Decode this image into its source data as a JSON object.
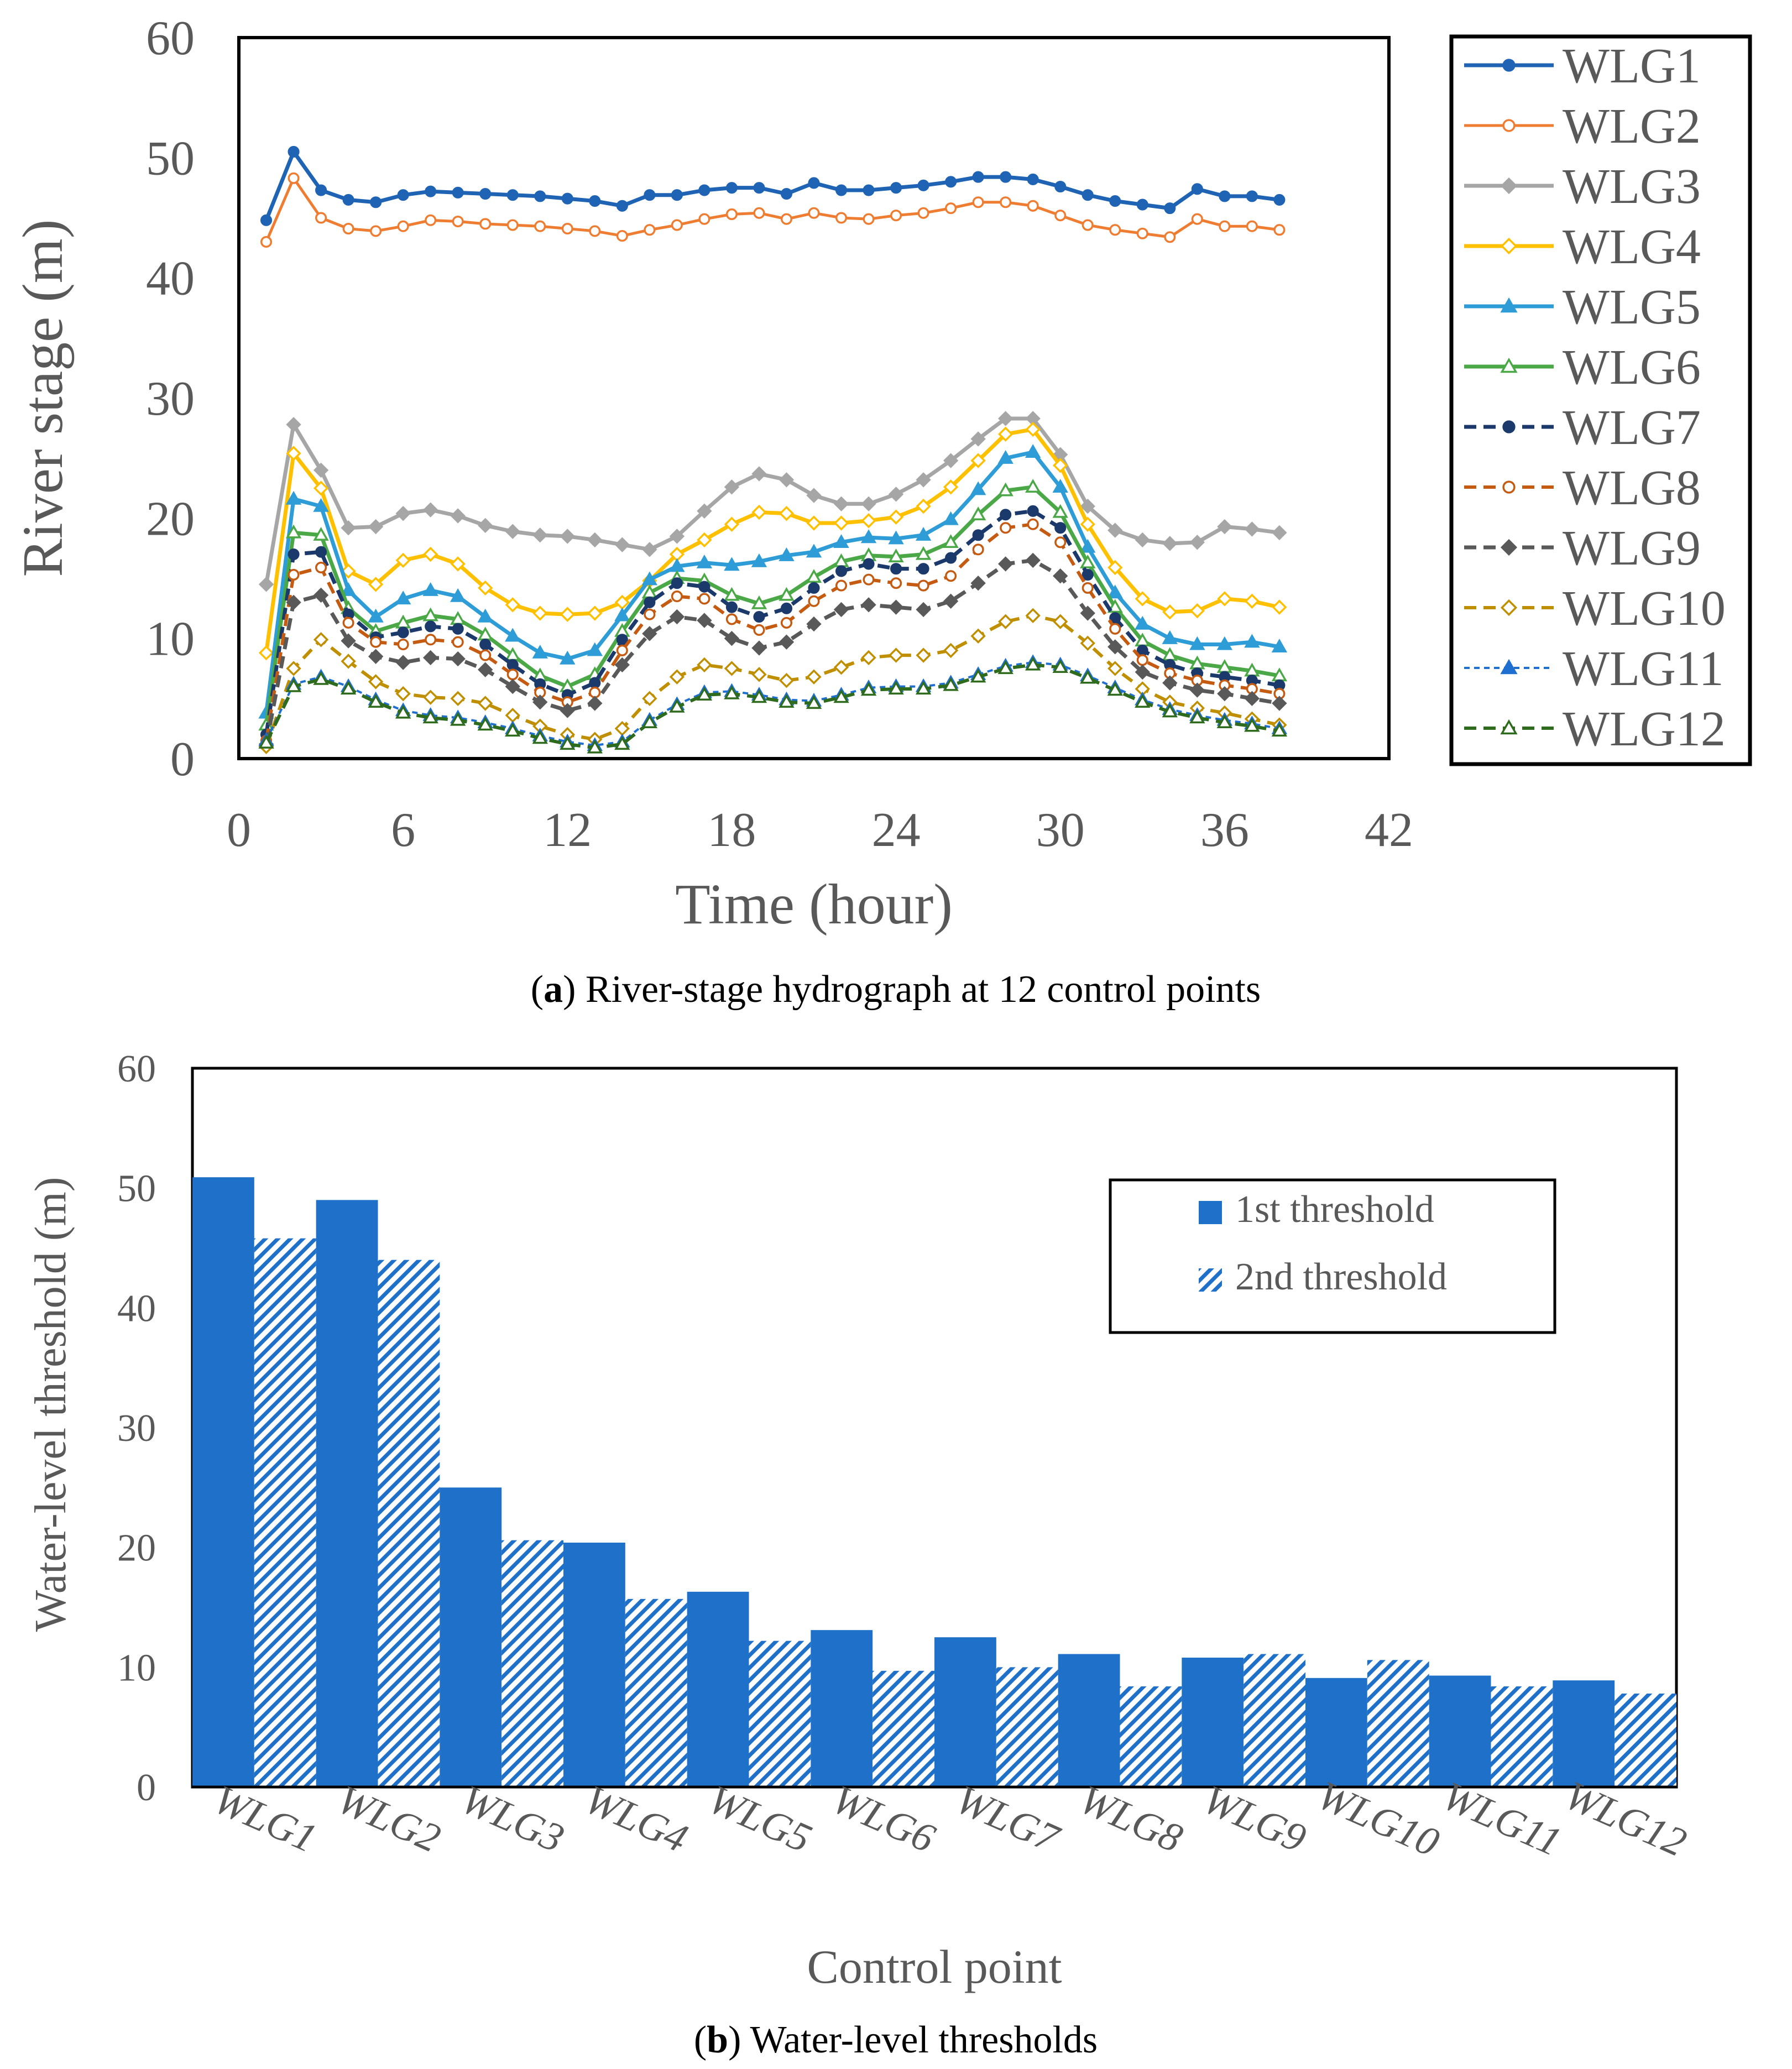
{
  "chart_data": [
    {
      "type": "line",
      "caption_label": "a",
      "caption_text": ") River-stage hydrograph at 12 control points",
      "xlabel": "Time (hour)",
      "ylabel": "River stage (m)",
      "xlim": [
        0,
        42
      ],
      "ylim": [
        0,
        60
      ],
      "xticks": [
        0,
        6,
        12,
        18,
        24,
        30,
        36,
        42
      ],
      "yticks": [
        0,
        10,
        20,
        30,
        40,
        50,
        60
      ],
      "grid": false,
      "legend": "right",
      "x": [
        1,
        2,
        3,
        4,
        5,
        6,
        7,
        8,
        9,
        10,
        11,
        12,
        13,
        14,
        15,
        16,
        17,
        18,
        19,
        20,
        21,
        22,
        23,
        24,
        25,
        26,
        27,
        28,
        29,
        30,
        31,
        32,
        33,
        34,
        35,
        36,
        37,
        38
      ],
      "series": [
        {
          "name": "WLG1",
          "color": "#1f63b4",
          "dash": "",
          "marker": "circle",
          "fill": "#1f63b4",
          "width": 7,
          "values": [
            44.8,
            50.5,
            47.3,
            46.5,
            46.3,
            46.9,
            47.2,
            47.1,
            47.0,
            46.9,
            46.8,
            46.6,
            46.4,
            46.0,
            46.9,
            46.9,
            47.3,
            47.5,
            47.5,
            47.0,
            47.9,
            47.3,
            47.3,
            47.5,
            47.7,
            48.0,
            48.4,
            48.4,
            48.2,
            47.6,
            46.9,
            46.4,
            46.1,
            45.8,
            47.4,
            46.8,
            46.8,
            46.5
          ]
        },
        {
          "name": "WLG2",
          "color": "#ee7d31",
          "dash": "",
          "marker": "circle",
          "fill": "#ffffff",
          "width": 5,
          "values": [
            43.0,
            48.3,
            45.0,
            44.1,
            43.9,
            44.3,
            44.8,
            44.7,
            44.5,
            44.4,
            44.3,
            44.1,
            43.9,
            43.5,
            44.0,
            44.4,
            44.9,
            45.3,
            45.4,
            44.9,
            45.4,
            45.0,
            44.9,
            45.2,
            45.4,
            45.8,
            46.3,
            46.3,
            46.0,
            45.2,
            44.4,
            44.0,
            43.7,
            43.4,
            44.9,
            44.3,
            44.3,
            44.0
          ]
        },
        {
          "name": "WLG3",
          "color": "#a6a6a6",
          "dash": "",
          "marker": "diamond",
          "fill": "#a6a6a6",
          "width": 7,
          "values": [
            14.5,
            27.8,
            24.0,
            19.2,
            19.3,
            20.4,
            20.7,
            20.2,
            19.4,
            18.9,
            18.6,
            18.5,
            18.2,
            17.8,
            17.4,
            18.5,
            20.6,
            22.6,
            23.7,
            23.2,
            21.9,
            21.2,
            21.2,
            22.0,
            23.2,
            24.8,
            26.6,
            28.3,
            28.3,
            25.3,
            21.0,
            19.0,
            18.2,
            17.9,
            18.0,
            19.3,
            19.1,
            18.8
          ]
        },
        {
          "name": "WLG4",
          "color": "#ffc000",
          "dash": "",
          "marker": "diamond",
          "fill": "#ffffff",
          "width": 7,
          "values": [
            8.8,
            25.4,
            22.5,
            15.6,
            14.5,
            16.5,
            17.0,
            16.2,
            14.2,
            12.8,
            12.1,
            12.0,
            12.1,
            13.0,
            14.8,
            17.0,
            18.2,
            19.5,
            20.5,
            20.4,
            19.6,
            19.6,
            19.8,
            20.1,
            21.0,
            22.6,
            24.8,
            27.0,
            27.4,
            24.4,
            19.5,
            15.9,
            13.3,
            12.2,
            12.3,
            13.3,
            13.1,
            12.6
          ]
        },
        {
          "name": "WLG5",
          "color": "#2e9cd6",
          "dash": "",
          "marker": "triangle",
          "fill": "#2e9cd6",
          "width": 7,
          "values": [
            3.8,
            21.6,
            21.0,
            14.0,
            11.8,
            13.3,
            14.0,
            13.5,
            11.8,
            10.2,
            8.8,
            8.3,
            9.0,
            11.9,
            14.9,
            16.0,
            16.3,
            16.1,
            16.4,
            16.9,
            17.2,
            18.0,
            18.4,
            18.3,
            18.6,
            19.9,
            22.4,
            25.0,
            25.5,
            22.6,
            17.6,
            13.8,
            11.2,
            10.0,
            9.5,
            9.5,
            9.7,
            9.3
          ]
        },
        {
          "name": "WLG6",
          "color": "#4aa847",
          "dash": "",
          "marker": "triangle",
          "fill": "#ffffff",
          "width": 7,
          "values": [
            2.8,
            18.8,
            18.6,
            12.5,
            10.6,
            11.3,
            11.9,
            11.6,
            10.3,
            8.6,
            6.9,
            6.0,
            7.0,
            10.6,
            13.8,
            15.0,
            14.8,
            13.6,
            12.9,
            13.6,
            15.1,
            16.4,
            16.9,
            16.8,
            17.0,
            18.0,
            20.3,
            22.3,
            22.6,
            20.5,
            16.3,
            12.6,
            9.8,
            8.6,
            7.9,
            7.6,
            7.3,
            6.9
          ]
        },
        {
          "name": "WLG7",
          "color": "#1b3a6b",
          "dash": "22,13",
          "marker": "circle",
          "fill": "#1b3a6b",
          "width": 7,
          "values": [
            2.0,
            17.0,
            17.2,
            12.0,
            10.1,
            10.5,
            11.0,
            10.8,
            9.5,
            7.8,
            6.2,
            5.3,
            6.3,
            9.9,
            13.0,
            14.6,
            14.3,
            12.6,
            11.8,
            12.5,
            14.2,
            15.6,
            16.2,
            15.8,
            15.8,
            16.7,
            18.6,
            20.3,
            20.6,
            19.2,
            15.3,
            11.7,
            9.0,
            7.8,
            7.1,
            6.8,
            6.5,
            6.1
          ]
        },
        {
          "name": "WLG8",
          "color": "#c55a11",
          "dash": "22,13",
          "marker": "circle",
          "fill": "#ffffff",
          "width": 6,
          "values": [
            1.5,
            15.3,
            15.9,
            11.3,
            9.7,
            9.5,
            9.9,
            9.7,
            8.6,
            7.0,
            5.5,
            4.7,
            5.5,
            9.0,
            12.0,
            13.5,
            13.3,
            11.6,
            10.7,
            11.3,
            13.1,
            14.4,
            14.9,
            14.6,
            14.4,
            15.2,
            17.4,
            19.2,
            19.5,
            18.0,
            14.2,
            10.8,
            8.2,
            7.1,
            6.5,
            6.1,
            5.8,
            5.4
          ]
        },
        {
          "name": "WLG9",
          "color": "#595959",
          "dash": "22,13",
          "marker": "diamond",
          "fill": "#595959",
          "width": 7,
          "values": [
            1.2,
            13.0,
            13.6,
            9.8,
            8.5,
            8.0,
            8.4,
            8.3,
            7.4,
            6.0,
            4.7,
            4.0,
            4.6,
            7.8,
            10.4,
            11.8,
            11.5,
            10.0,
            9.2,
            9.7,
            11.2,
            12.4,
            12.8,
            12.6,
            12.4,
            13.1,
            14.6,
            16.2,
            16.5,
            15.2,
            12.1,
            9.3,
            7.2,
            6.3,
            5.7,
            5.4,
            5.0,
            4.6
          ]
        },
        {
          "name": "WLG10",
          "color": "#bf8f00",
          "dash": "22,13",
          "marker": "diamond",
          "fill": "#ffffff",
          "width": 6,
          "values": [
            1.0,
            7.5,
            9.9,
            8.1,
            6.4,
            5.4,
            5.1,
            5.0,
            4.6,
            3.6,
            2.7,
            2.0,
            1.6,
            2.5,
            5.0,
            6.8,
            7.8,
            7.5,
            7.0,
            6.5,
            6.8,
            7.6,
            8.4,
            8.6,
            8.6,
            9.0,
            10.2,
            11.4,
            11.9,
            11.4,
            9.6,
            7.5,
            5.8,
            4.7,
            4.2,
            3.8,
            3.3,
            2.8
          ]
        },
        {
          "name": "WLG11",
          "color": "#1f6fd1",
          "dash": "10,8",
          "marker": "triangle",
          "fill": "#1f6fd1",
          "width": 4,
          "values": [
            1.5,
            6.2,
            6.8,
            6.0,
            4.9,
            4.0,
            3.6,
            3.4,
            3.0,
            2.5,
            1.9,
            1.4,
            1.1,
            1.4,
            3.2,
            4.5,
            5.5,
            5.6,
            5.3,
            4.9,
            4.8,
            5.3,
            5.9,
            6.0,
            6.0,
            6.3,
            7.0,
            7.7,
            8.0,
            7.8,
            6.9,
            5.9,
            4.9,
            4.1,
            3.6,
            3.2,
            2.9,
            2.5
          ]
        },
        {
          "name": "WLG12",
          "color": "#2e6b1d",
          "dash": "22,13",
          "marker": "triangle",
          "fill": "#ffffff",
          "width": 6,
          "values": [
            1.3,
            6.0,
            6.6,
            5.8,
            4.7,
            3.8,
            3.4,
            3.2,
            2.8,
            2.3,
            1.7,
            1.2,
            0.9,
            1.2,
            3.0,
            4.3,
            5.3,
            5.4,
            5.1,
            4.7,
            4.6,
            5.1,
            5.7,
            5.8,
            5.8,
            6.1,
            6.8,
            7.5,
            7.8,
            7.6,
            6.7,
            5.7,
            4.7,
            3.9,
            3.4,
            3.0,
            2.7,
            2.3
          ]
        }
      ]
    },
    {
      "type": "bar",
      "caption_label": "b",
      "caption_text": ") Water-level thresholds",
      "xlabel": "Control point",
      "ylabel": "Water-level threshold (m)",
      "ylim": [
        0,
        60
      ],
      "yticks": [
        0,
        10,
        20,
        30,
        40,
        50,
        60
      ],
      "grid": false,
      "legend": "top-right",
      "categories": [
        "WLG1",
        "WLG2",
        "WLG3",
        "WLG4",
        "WLG5",
        "WLG6",
        "WLG7",
        "WLG8",
        "WLG9",
        "WLG10",
        "WLG11",
        "WLG12"
      ],
      "series": [
        {
          "name": "1st threshold",
          "style": "solid",
          "color": "#1f70c8",
          "values": [
            50.9,
            49.0,
            25.0,
            20.4,
            16.3,
            13.1,
            12.5,
            11.1,
            10.8,
            9.1,
            9.3,
            8.9
          ]
        },
        {
          "name": "2nd threshold",
          "style": "hatched",
          "color": "#1f70c8",
          "values": [
            45.8,
            44.0,
            20.6,
            15.7,
            12.2,
            9.7,
            10.0,
            8.4,
            11.1,
            10.6,
            8.4,
            7.8
          ]
        }
      ]
    }
  ]
}
